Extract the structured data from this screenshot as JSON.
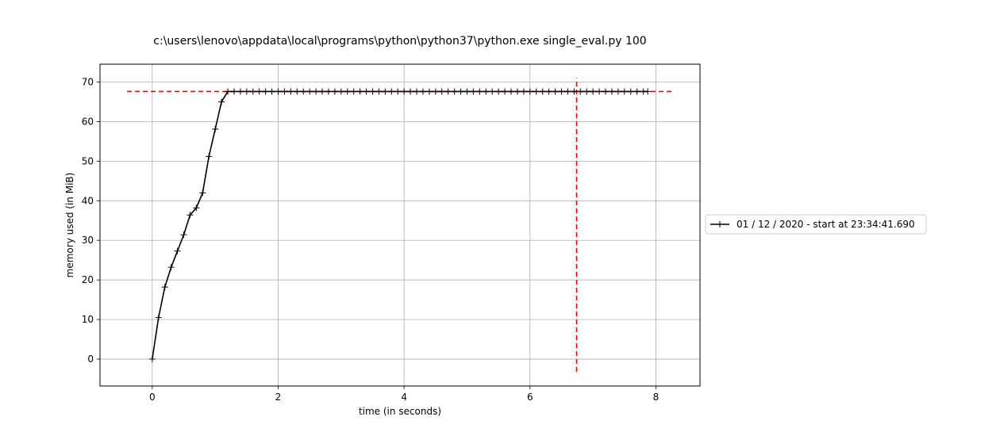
{
  "chart_data": {
    "type": "line",
    "title": "c:\\users\\lenovo\\appdata\\local\\programs\\python\\python37\\python.exe single_eval.py 100",
    "xlabel": "time (in seconds)",
    "ylabel": "memory used (in MiB)",
    "xlim": [
      -0.83,
      8.7
    ],
    "ylim": [
      -6.8,
      74.5
    ],
    "xticks": [
      0,
      2,
      4,
      6,
      8
    ],
    "yticks": [
      0,
      10,
      20,
      30,
      40,
      50,
      60,
      70
    ],
    "xtick_labels": [
      "0",
      "2",
      "4",
      "6",
      "8"
    ],
    "ytick_labels": [
      "0",
      "10",
      "20",
      "30",
      "40",
      "50",
      "60",
      "70"
    ],
    "grid": true,
    "legend_placement": "right, outside plot",
    "series": [
      {
        "name": "01 / 12 / 2020 - start at 23:34:41.690",
        "color": "#000000",
        "marker": "+",
        "x": [
          0,
          0.1,
          0.2,
          0.3,
          0.4,
          0.5,
          0.6,
          0.7,
          0.8,
          0.9,
          1.0,
          1.1,
          1.2,
          1.3,
          1.4,
          1.5,
          1.6,
          1.7,
          1.8,
          1.9,
          2.0,
          2.1,
          2.2,
          2.3,
          2.4,
          2.5,
          2.6,
          2.7,
          2.8,
          2.9,
          3.0,
          3.1,
          3.2,
          3.3,
          3.4,
          3.5,
          3.6,
          3.7,
          3.8,
          3.9,
          4.0,
          4.1,
          4.2,
          4.3,
          4.4,
          4.5,
          4.6,
          4.7,
          4.8,
          4.9,
          5.0,
          5.1,
          5.2,
          5.3,
          5.4,
          5.5,
          5.6,
          5.7,
          5.8,
          5.9,
          6.0,
          6.1,
          6.2,
          6.3,
          6.4,
          6.5,
          6.6,
          6.7,
          6.8,
          6.9,
          7.0,
          7.1,
          7.2,
          7.3,
          7.4,
          7.5,
          7.6,
          7.7,
          7.8,
          7.87
        ],
        "y": [
          0,
          10.5,
          18.2,
          23.2,
          27.3,
          31.4,
          36.4,
          38.2,
          42.0,
          51.2,
          58.1,
          65.0,
          67.6,
          67.6,
          67.6,
          67.6,
          67.6,
          67.6,
          67.6,
          67.6,
          67.6,
          67.6,
          67.6,
          67.6,
          67.6,
          67.6,
          67.6,
          67.6,
          67.6,
          67.6,
          67.6,
          67.6,
          67.6,
          67.6,
          67.6,
          67.6,
          67.6,
          67.6,
          67.6,
          67.6,
          67.6,
          67.6,
          67.6,
          67.6,
          67.6,
          67.6,
          67.6,
          67.6,
          67.6,
          67.6,
          67.6,
          67.6,
          67.6,
          67.6,
          67.6,
          67.6,
          67.6,
          67.6,
          67.6,
          67.6,
          67.6,
          67.6,
          67.6,
          67.6,
          67.6,
          67.6,
          67.6,
          67.6,
          67.6,
          67.6,
          67.6,
          67.6,
          67.6,
          67.6,
          67.6,
          67.6,
          67.6,
          67.6,
          67.6,
          67.6
        ]
      }
    ],
    "reference_lines": [
      {
        "orientation": "horizontal",
        "y": 67.6,
        "x_range": [
          -0.4,
          8.28
        ],
        "color": "#ff0000",
        "style": "dashed"
      },
      {
        "orientation": "vertical",
        "x": 6.74,
        "y_range": [
          -3.2,
          71.0
        ],
        "color": "#ff0000",
        "style": "dashed"
      }
    ]
  }
}
